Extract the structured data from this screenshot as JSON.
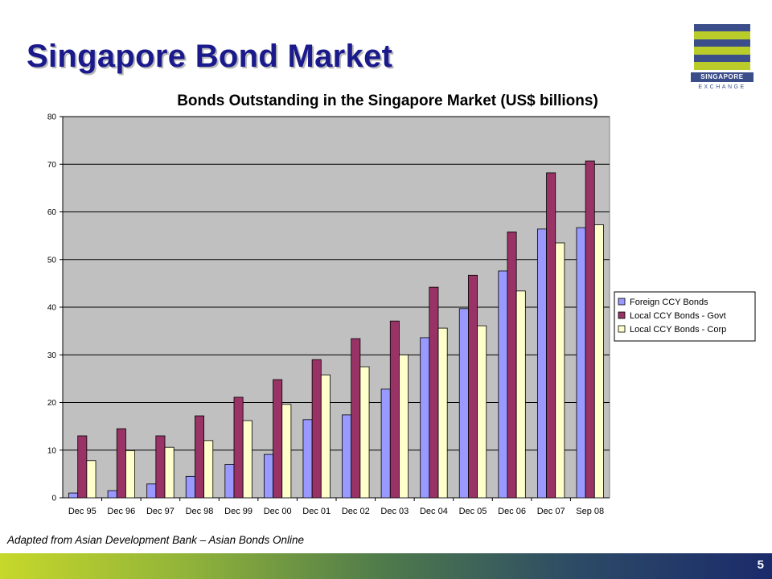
{
  "slide": {
    "title": "Singapore Bond Market",
    "source_note": "Adapted from Asian Development Bank – Asian Bonds Online",
    "page_number": "5",
    "logo": {
      "name": "SINGAPORE",
      "sub": "EXCHANGE"
    }
  },
  "colors": {
    "title": "#1a1a8c",
    "plot_bg": "#c0c0c0",
    "foreign": "#9999ff",
    "govt": "#993366",
    "corp": "#ffffcc"
  },
  "chart_data": {
    "type": "bar",
    "title": "Bonds Outstanding in the Singapore Market (US$ billions)",
    "xlabel": "",
    "ylabel": "",
    "ylim": [
      0,
      80
    ],
    "yticks": [
      0,
      10,
      20,
      30,
      40,
      50,
      60,
      70,
      80
    ],
    "grid": true,
    "legend_position": "right",
    "categories": [
      "Dec 95",
      "Dec 96",
      "Dec 97",
      "Dec 98",
      "Dec 99",
      "Dec 00",
      "Dec 01",
      "Dec 02",
      "Dec 03",
      "Dec 04",
      "Dec 05",
      "Dec 06",
      "Dec 07",
      "Sep 08"
    ],
    "series": [
      {
        "name": "Foreign CCY Bonds",
        "color": "#9999ff",
        "values": [
          1.0,
          1.5,
          2.9,
          4.5,
          7.0,
          9.1,
          16.4,
          17.4,
          22.8,
          33.6,
          39.7,
          47.6,
          56.4,
          56.7
        ]
      },
      {
        "name": "Local CCY Bonds - Govt",
        "color": "#993366",
        "values": [
          13.0,
          14.5,
          13.0,
          17.2,
          21.1,
          24.8,
          29.0,
          33.4,
          37.1,
          44.2,
          46.7,
          55.8,
          68.2,
          70.7
        ]
      },
      {
        "name": "Local CCY Bonds - Corp",
        "color": "#ffffcc",
        "values": [
          7.8,
          9.9,
          10.6,
          12.0,
          16.2,
          19.6,
          25.8,
          27.5,
          30.0,
          35.6,
          36.1,
          43.4,
          53.5,
          57.3
        ]
      }
    ]
  }
}
